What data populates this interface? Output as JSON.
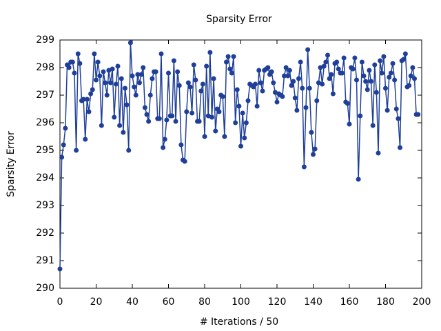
{
  "chart_data": {
    "type": "line",
    "title": "Sparsity Error",
    "x_label": "# Iterations / 50",
    "y_label": "Sparsity Error",
    "xlim": [
      0,
      200
    ],
    "ylim": [
      290,
      299
    ],
    "xticks": [
      0,
      20,
      40,
      60,
      80,
      100,
      120,
      140,
      160,
      180,
      200
    ],
    "yticks": [
      290,
      291,
      292,
      293,
      294,
      295,
      296,
      297,
      298,
      299
    ],
    "x": [
      0,
      1,
      2,
      3,
      4,
      5,
      6,
      7,
      8,
      9,
      10,
      11,
      12,
      13,
      14,
      15,
      16,
      17,
      18,
      19,
      20,
      21,
      22,
      23,
      24,
      25,
      26,
      27,
      28,
      29,
      30,
      31,
      32,
      33,
      34,
      35,
      36,
      37,
      38,
      39,
      40,
      41,
      42,
      43,
      44,
      45,
      46,
      47,
      48,
      49,
      50,
      51,
      52,
      53,
      54,
      55,
      56,
      57,
      58,
      59,
      60,
      61,
      62,
      63,
      64,
      65,
      66,
      67,
      68,
      69,
      70,
      71,
      72,
      73,
      74,
      75,
      76,
      77,
      78,
      79,
      80,
      81,
      82,
      83,
      84,
      85,
      86,
      87,
      88,
      89,
      90,
      91,
      92,
      93,
      94,
      95,
      96,
      97,
      98,
      99,
      100,
      101,
      102,
      103,
      104,
      105,
      106,
      107,
      108,
      109,
      110,
      111,
      112,
      113,
      114,
      115,
      116,
      117,
      118,
      119,
      120,
      121,
      122,
      123,
      124,
      125,
      126,
      127,
      128,
      129,
      130,
      131,
      132,
      133,
      134,
      135,
      136,
      137,
      138,
      139,
      140,
      141,
      142,
      143,
      144,
      145,
      146,
      147,
      148,
      149,
      150,
      151,
      152,
      153,
      154,
      155,
      156,
      157,
      158,
      159,
      160,
      161,
      162,
      163,
      164,
      165,
      166,
      167,
      168,
      169,
      170,
      171,
      172,
      173,
      174,
      175,
      176,
      177,
      178,
      179,
      180,
      181,
      182,
      183,
      184,
      185,
      186,
      187,
      188,
      189,
      190,
      191,
      192,
      193,
      194,
      195,
      196,
      197,
      198
    ],
    "series": [
      {
        "color": "#1f3f99",
        "values": [
          290.7,
          294.75,
          295.2,
          295.8,
          298.1,
          298.0,
          298.2,
          298.2,
          297.8,
          295.0,
          298.5,
          298.15,
          296.8,
          296.85,
          295.4,
          296.85,
          296.4,
          297.05,
          297.2,
          298.5,
          297.55,
          298.2,
          297.7,
          295.9,
          297.85,
          297.45,
          297.0,
          297.9,
          297.45,
          297.95,
          296.2,
          297.4,
          298.05,
          295.9,
          297.6,
          295.65,
          297.25,
          296.65,
          295.0,
          298.9,
          297.7,
          297.3,
          297.0,
          297.75,
          297.45,
          297.75,
          298.0,
          296.55,
          296.3,
          296.05,
          297.0,
          297.6,
          297.85,
          297.85,
          296.15,
          296.15,
          298.5,
          295.1,
          295.4,
          296.1,
          297.8,
          296.25,
          296.25,
          298.25,
          296.05,
          297.85,
          297.35,
          295.2,
          294.65,
          294.6,
          296.4,
          297.45,
          297.3,
          296.35,
          298.1,
          297.55,
          296.05,
          296.05,
          297.15,
          297.4,
          295.5,
          298.05,
          296.25,
          298.55,
          296.2,
          297.6,
          295.7,
          296.5,
          296.4,
          297.0,
          296.95,
          295.5,
          298.2,
          298.4,
          297.95,
          297.8,
          298.4,
          296.0,
          297.2,
          296.6,
          295.15,
          296.35,
          295.45,
          296.0,
          296.8,
          297.4,
          297.35,
          297.3,
          297.4,
          296.6,
          297.9,
          297.45,
          297.15,
          297.9,
          297.95,
          298.0,
          297.75,
          297.85,
          297.45,
          297.1,
          296.75,
          297.05,
          297.0,
          296.95,
          297.7,
          298.0,
          297.7,
          297.9,
          297.35,
          297.5,
          296.9,
          296.45,
          297.6,
          298.2,
          297.25,
          294.4,
          296.55,
          298.65,
          297.25,
          295.65,
          294.85,
          295.05,
          296.8,
          297.45,
          298.0,
          297.4,
          298.05,
          298.2,
          298.45,
          297.6,
          297.75,
          297.05,
          298.15,
          298.2,
          297.95,
          297.8,
          297.8,
          298.35,
          296.75,
          296.7,
          295.95,
          298.0,
          297.95,
          298.35,
          297.55,
          293.95,
          296.25,
          298.2,
          297.7,
          297.5,
          297.2,
          297.9,
          297.5,
          295.9,
          298.1,
          297.1,
          294.9,
          298.25,
          297.8,
          298.4,
          297.25,
          296.45,
          297.65,
          297.8,
          298.15,
          297.55,
          296.5,
          296.15,
          295.1,
          298.25,
          298.3,
          298.5,
          297.3,
          297.35,
          297.7,
          298.0,
          297.6,
          296.3,
          296.3
        ]
      }
    ]
  }
}
